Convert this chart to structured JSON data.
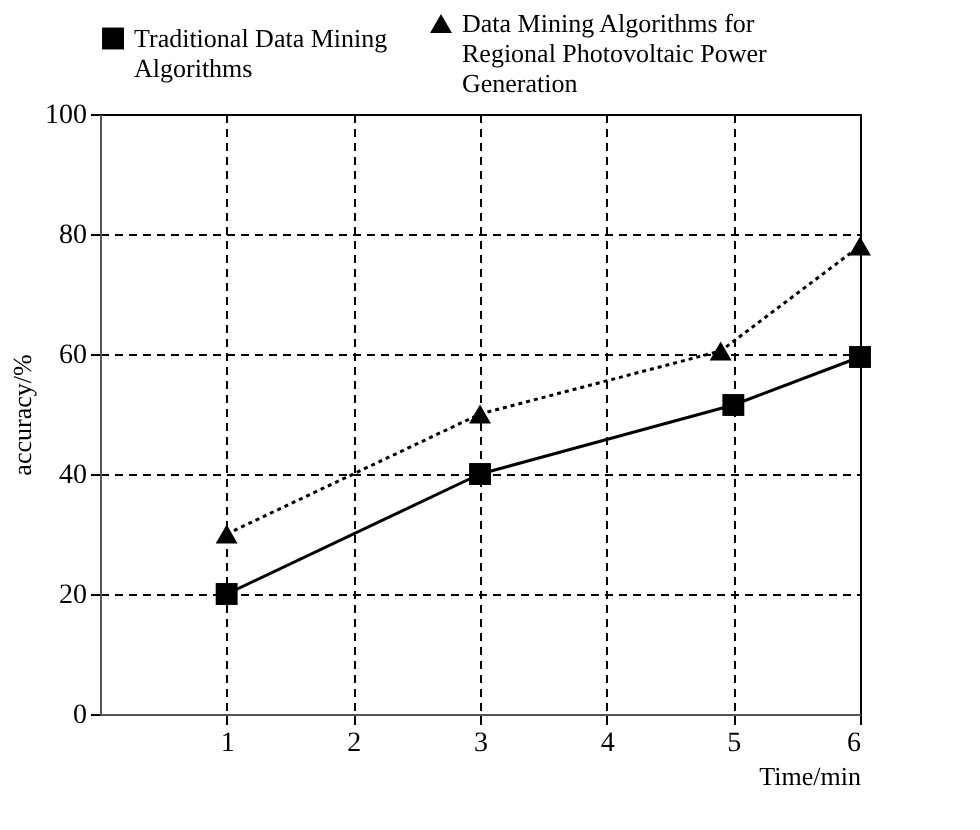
{
  "chart_data": {
    "type": "line",
    "xlabel": "Time/min",
    "ylabel": "accuracy/%",
    "xlim": [
      0,
      6
    ],
    "xticks": [
      1,
      2,
      3,
      4,
      5,
      6
    ],
    "ylim": [
      0,
      100
    ],
    "yticks": [
      0,
      20,
      40,
      60,
      80,
      100
    ],
    "grid": true,
    "legend": "top",
    "series": [
      {
        "name": "Traditional Data Mining Algorithms",
        "color": "#000000",
        "marker": "square",
        "line_style": "solid",
        "x": [
          1,
          3,
          5,
          6
        ],
        "values": [
          20,
          40,
          51.5,
          59.5
        ]
      },
      {
        "name": "Data Mining Algorithms for Regional Photovoltaic Power Generation",
        "color": "#000000",
        "marker": "triangle",
        "line_style": "dotted",
        "x": [
          1,
          3,
          4.9,
          6
        ],
        "values": [
          30,
          50,
          60.5,
          78
        ]
      }
    ]
  }
}
